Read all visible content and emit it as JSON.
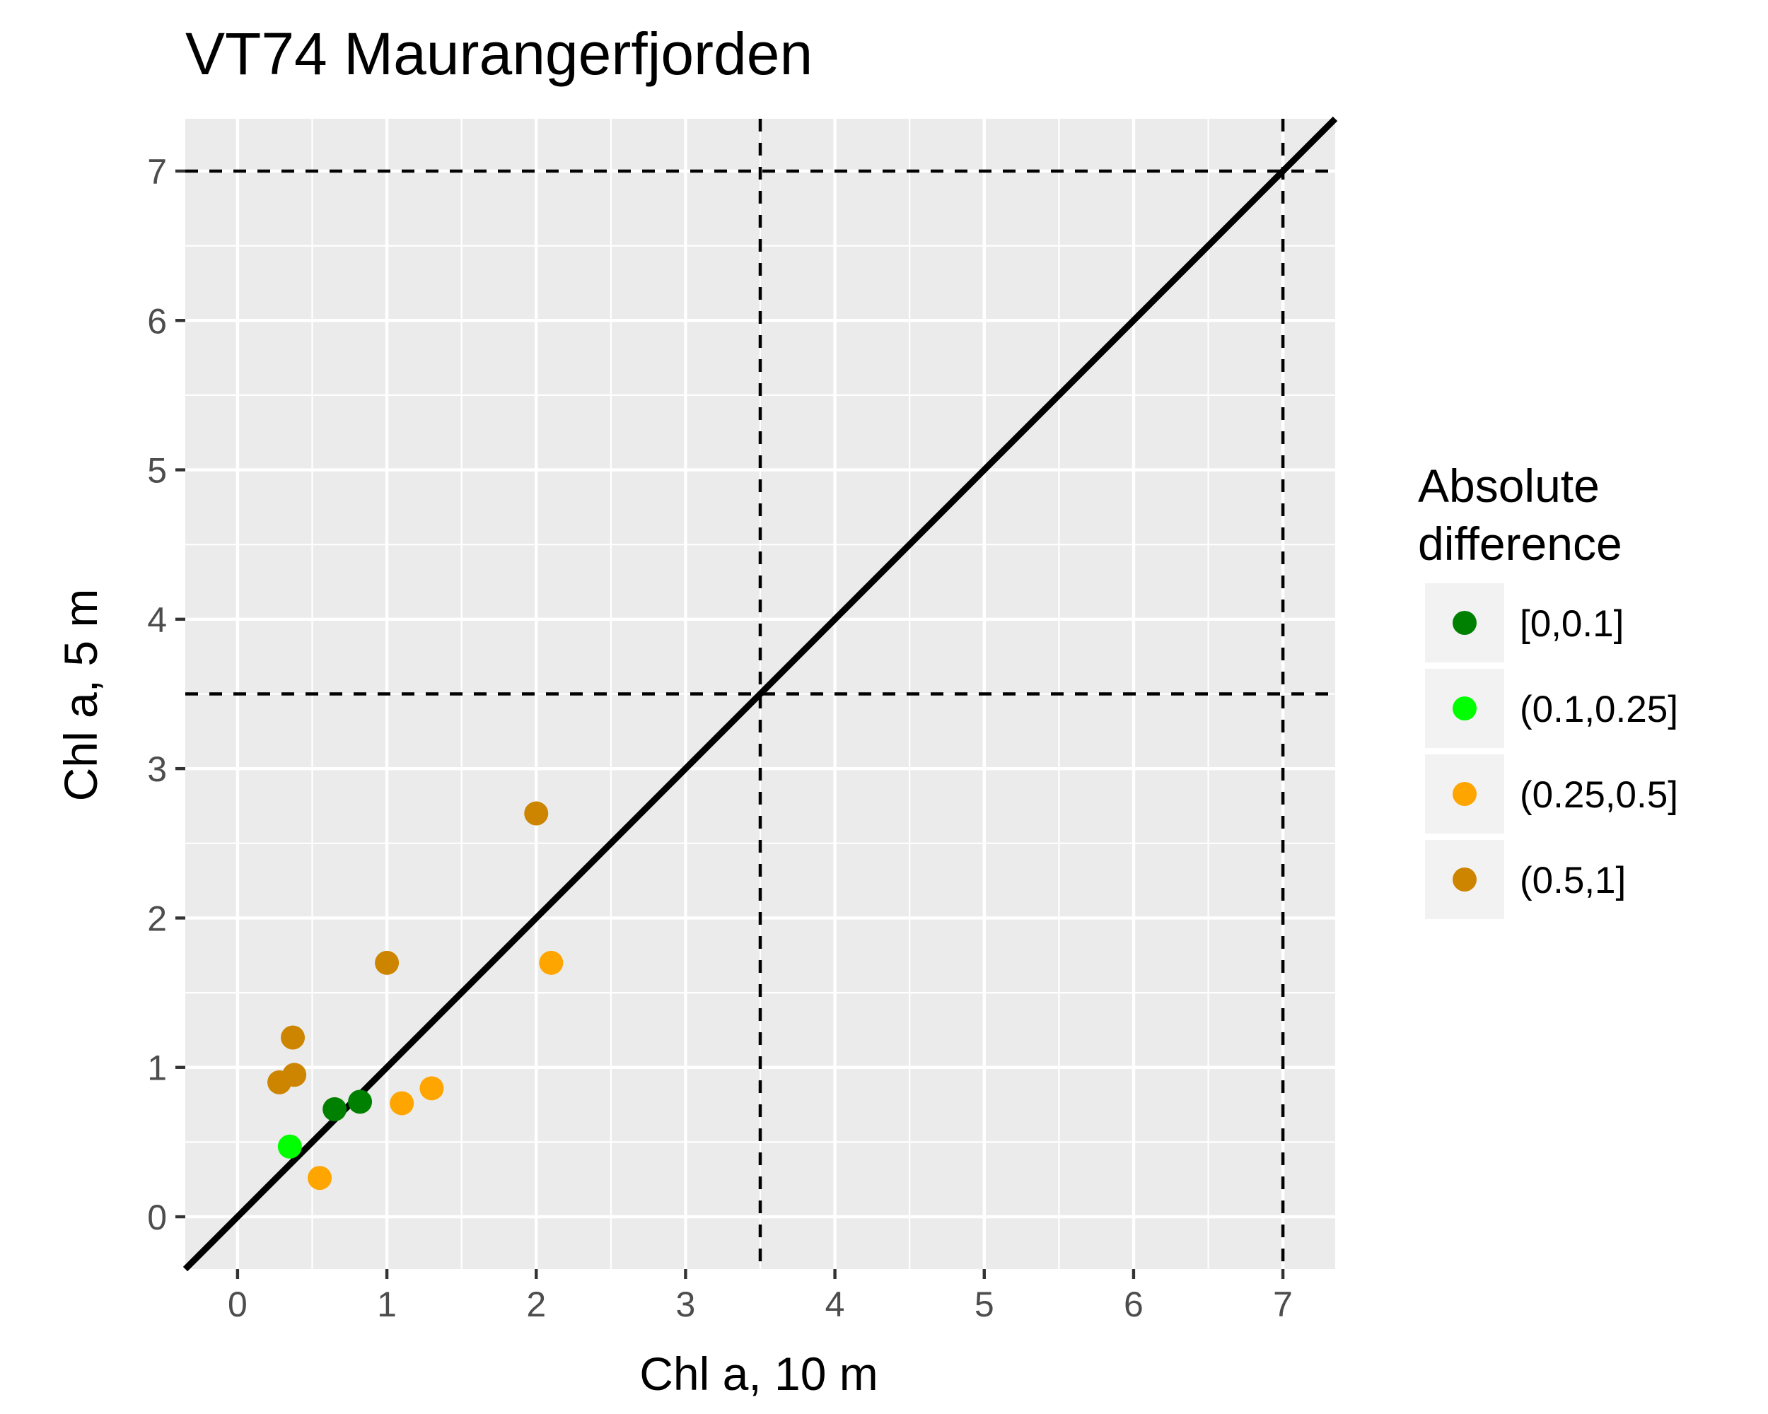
{
  "chart_data": {
    "type": "scatter",
    "title": "VT74 Maurangerfjorden",
    "xlabel": "Chl a, 10 m",
    "ylabel": "Chl a, 5 m",
    "xlim": [
      -0.35,
      7.35
    ],
    "ylim": [
      -0.35,
      7.35
    ],
    "x_ticks": [
      0,
      1,
      2,
      3,
      4,
      5,
      6,
      7
    ],
    "y_ticks": [
      0,
      1,
      2,
      3,
      4,
      5,
      6,
      7
    ],
    "x_tick_labels": [
      "0",
      "1",
      "2",
      "3",
      "4",
      "5",
      "6",
      "7"
    ],
    "y_tick_labels": [
      "0",
      "1",
      "2",
      "3",
      "4",
      "5",
      "6",
      "7"
    ],
    "grid": true,
    "reference_lines": {
      "identity_line": true,
      "vertical_dashed": [
        3.5,
        7
      ],
      "horizontal_dashed": [
        3.5,
        7
      ]
    },
    "legend": {
      "title_lines": [
        "Absolute",
        "difference"
      ],
      "placement": "right",
      "entries": [
        {
          "label": "[0,0.1]",
          "color": "#008000"
        },
        {
          "label": "(0.1,0.25]",
          "color": "#00ff00"
        },
        {
          "label": "(0.25,0.5]",
          "color": "#ffa500"
        },
        {
          "label": "(0.5,1]",
          "color": "#cd8500"
        }
      ]
    },
    "points": [
      {
        "x": 0.65,
        "y": 0.72,
        "group": 0
      },
      {
        "x": 0.82,
        "y": 0.77,
        "group": 0
      },
      {
        "x": 0.35,
        "y": 0.47,
        "group": 1
      },
      {
        "x": 0.55,
        "y": 0.26,
        "group": 2
      },
      {
        "x": 1.1,
        "y": 0.76,
        "group": 2
      },
      {
        "x": 1.3,
        "y": 0.86,
        "group": 2
      },
      {
        "x": 2.1,
        "y": 1.7,
        "group": 2
      },
      {
        "x": 0.28,
        "y": 0.9,
        "group": 3
      },
      {
        "x": 0.38,
        "y": 0.95,
        "group": 3
      },
      {
        "x": 0.37,
        "y": 1.2,
        "group": 3
      },
      {
        "x": 1.0,
        "y": 1.7,
        "group": 3
      },
      {
        "x": 2.0,
        "y": 2.7,
        "group": 3
      }
    ]
  },
  "colors": {
    "panel_background": "#ebebeb",
    "grid_major": "#ffffff",
    "reference_line": "#000000"
  }
}
